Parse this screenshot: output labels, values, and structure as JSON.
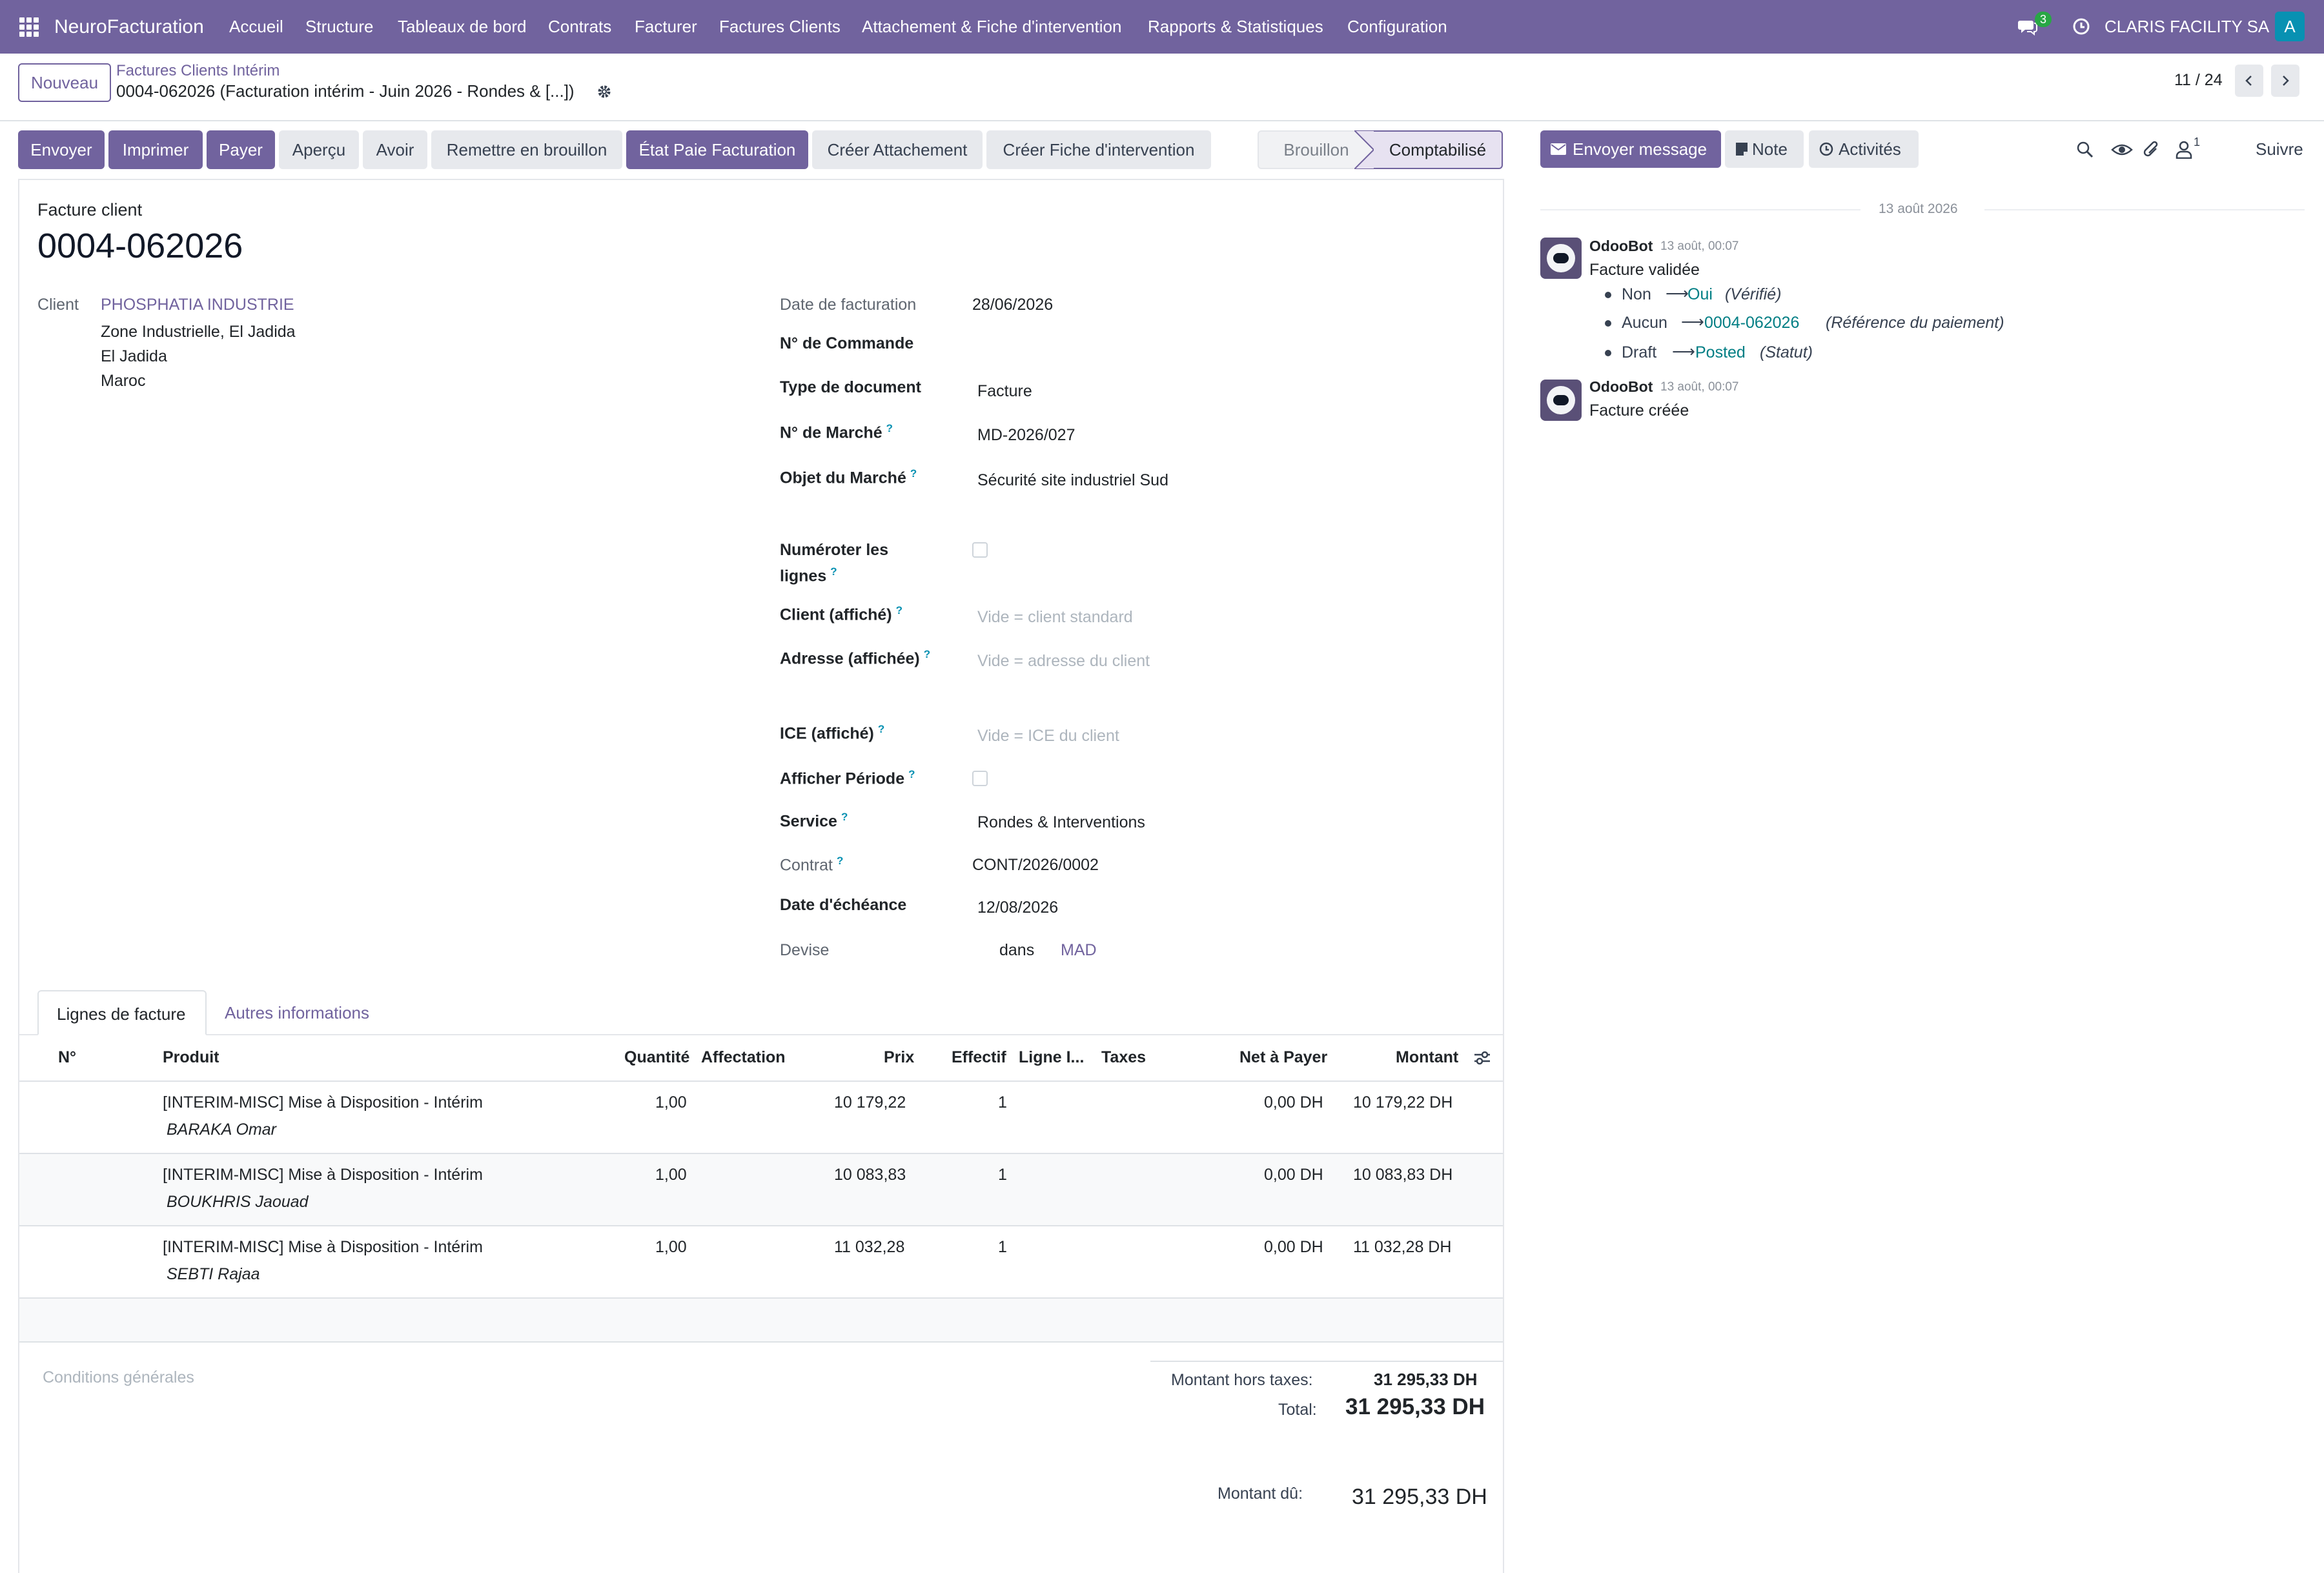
{
  "topnav": {
    "brand": "NeuroFacturation",
    "menu": [
      "Accueil",
      "Structure",
      "Tableaux de bord",
      "Contrats",
      "Facturer",
      "Factures Clients",
      "Attachement & Fiche d'intervention",
      "Rapports & Statistiques",
      "Configuration"
    ],
    "chat_badge": "3",
    "company": "CLARIS FACILITY SA",
    "avatar_letter": "A",
    "colors": {
      "bar": "#71639e",
      "badge": "#28a745",
      "avatar": "#0891b2"
    }
  },
  "control": {
    "new_button": "Nouveau",
    "breadcrumb": "Factures Clients Intérim",
    "record": "0004-062026 (Facturation intérim - Juin 2026 - Rondes & [...])",
    "pager": "11 / 24"
  },
  "actions": [
    "Envoyer",
    "Imprimer",
    "Payer",
    "Aperçu",
    "Avoir",
    "Remettre en brouillon",
    "État Paie Facturation",
    "Créer Attachement",
    "Créer Fiche d'intervention"
  ],
  "statusbar": {
    "draft": "Brouillon",
    "posted": "Comptabilisé"
  },
  "form": {
    "type_label": "Facture client",
    "number": "0004-062026",
    "client_label": "Client",
    "client_name": "PHOSPHATIA INDUSTRIE",
    "address": [
      "Zone Industrielle, El Jadida",
      "El Jadida",
      "Maroc"
    ],
    "fields": {
      "invoice_date": {
        "label": "Date de facturation",
        "value": "28/06/2026"
      },
      "order_no": {
        "label": "N° de Commande",
        "value": ""
      },
      "doc_type": {
        "label": "Type de document",
        "value": "Facture"
      },
      "market_no": {
        "label": "N° de Marché",
        "value": "MD-2026/027"
      },
      "market_object": {
        "label": "Objet du Marché",
        "value": "Sécurité site industriel Sud"
      },
      "number_lines": {
        "label_1": "Numéroter les",
        "label_2": "lignes"
      },
      "client_display": {
        "label": "Client (affiché)",
        "placeholder": "Vide = client standard"
      },
      "address_display": {
        "label": "Adresse (affichée)",
        "placeholder": "Vide = adresse du client"
      },
      "ice_display": {
        "label": "ICE (affiché)",
        "placeholder": "Vide = ICE du client"
      },
      "show_period": {
        "label": "Afficher Période"
      },
      "service": {
        "label": "Service",
        "value": "Rondes & Interventions"
      },
      "contract": {
        "label": "Contrat",
        "value": "CONT/2026/0002"
      },
      "due_date": {
        "label": "Date d'échéance",
        "value": "12/08/2026"
      },
      "currency": {
        "label": "Devise",
        "prefix": "dans",
        "value": "MAD"
      }
    },
    "help_mark": "?"
  },
  "tabs": {
    "lines": "Lignes de facture",
    "other": "Autres informations"
  },
  "table": {
    "headers": {
      "no": "N°",
      "product": "Produit",
      "qty": "Quantité",
      "assign": "Affectation",
      "price": "Prix",
      "effective": "Effectif",
      "line": "Ligne I...",
      "taxes": "Taxes",
      "net": "Net à Payer",
      "amount": "Montant"
    },
    "rows": [
      {
        "product": "[INTERIM-MISC] Mise à Disposition - Intérim",
        "person": "BARAKA Omar",
        "qty": "1,00",
        "price": "10 179,22",
        "effective": "1",
        "net": "0,00 DH",
        "amount": "10 179,22 DH"
      },
      {
        "product": "[INTERIM-MISC] Mise à Disposition - Intérim",
        "person": "BOUKHRIS Jaouad",
        "qty": "1,00",
        "price": "10 083,83",
        "effective": "1",
        "net": "0,00 DH",
        "amount": "10 083,83 DH"
      },
      {
        "product": "[INTERIM-MISC] Mise à Disposition - Intérim",
        "person": "SEBTI Rajaa",
        "qty": "1,00",
        "price": "11 032,28",
        "effective": "1",
        "net": "0,00 DH",
        "amount": "11 032,28 DH"
      }
    ]
  },
  "totals": {
    "conditions_placeholder": "Conditions générales",
    "untaxed_label": "Montant hors taxes:",
    "untaxed": "31 295,33 DH",
    "total_label": "Total:",
    "total": "31 295,33 DH",
    "due_label": "Montant dû:",
    "due": "31 295,33 DH"
  },
  "chatter": {
    "send_message": "Envoyer message",
    "note": "Note",
    "activities": "Activités",
    "followers_count": "1",
    "follow": "Suivre",
    "date_separator": "13 août 2026",
    "messages": [
      {
        "author": "OdooBot",
        "time": "13 août, 00:07",
        "body": "Facture validée",
        "tracking": [
          {
            "old": "Non",
            "new": "Oui",
            "field": "(Vérifié)"
          },
          {
            "old": "Aucun",
            "new": "0004-062026",
            "field": "(Référence du paiement)"
          },
          {
            "old": "Draft",
            "new": "Posted",
            "field": "(Statut)"
          }
        ]
      },
      {
        "author": "OdooBot",
        "time": "13 août, 00:07",
        "body": "Facture créée"
      }
    ]
  }
}
